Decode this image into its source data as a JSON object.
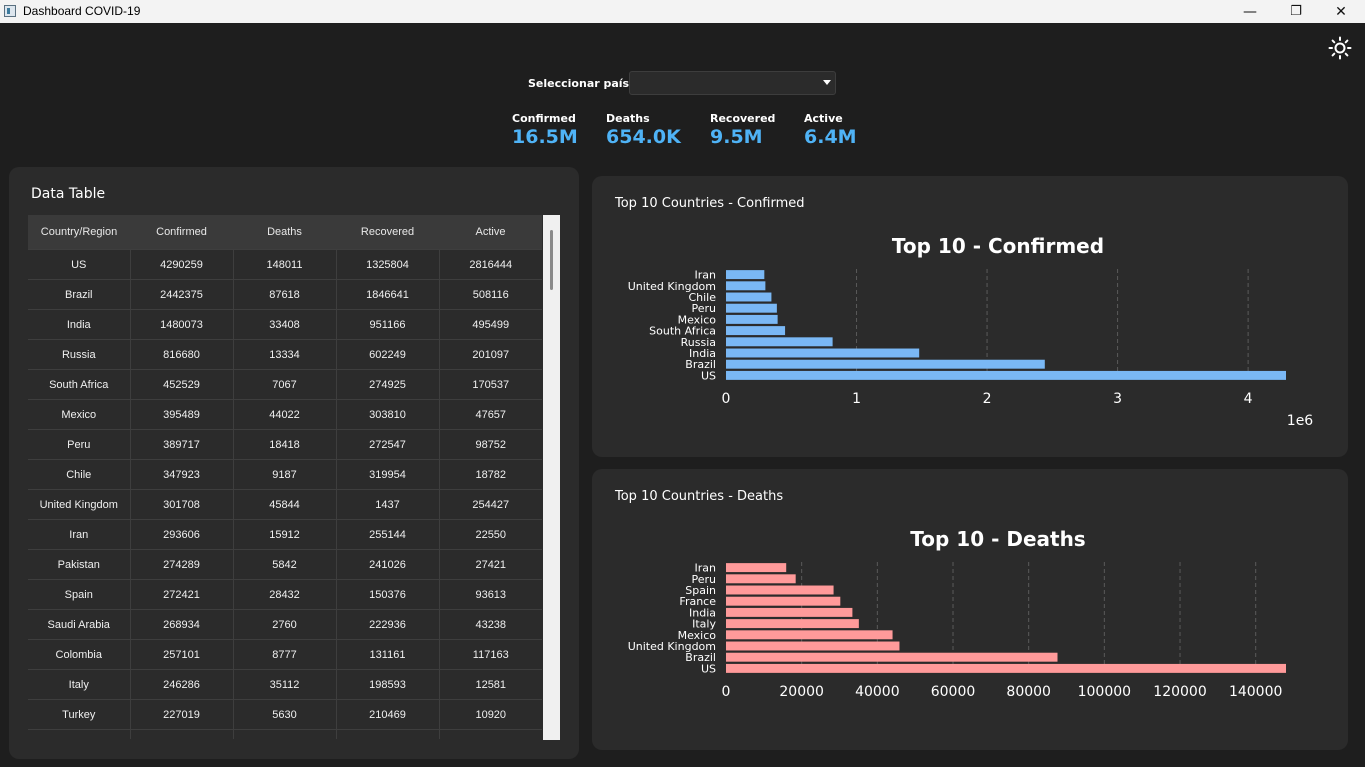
{
  "window": {
    "title": "Dashboard COVID-19",
    "minimize": "—",
    "maximize": "❐",
    "close": "✕"
  },
  "theme_toggle": {
    "icon": "sun-icon"
  },
  "country_selector": {
    "label": "Seleccionar país:",
    "value": ""
  },
  "kpis": [
    {
      "label": "Confirmed",
      "value": "16.5M"
    },
    {
      "label": "Deaths",
      "value": "654.0K"
    },
    {
      "label": "Recovered",
      "value": "9.5M"
    },
    {
      "label": "Active",
      "value": "6.4M"
    }
  ],
  "colors": {
    "accent": "#4fb3f6",
    "confirmed_bar": "#7ab8f5",
    "deaths_bar": "#ff9a9a",
    "panel": "#2b2b2b",
    "background": "#1e1e1e"
  },
  "data_table": {
    "title": "Data Table",
    "columns": [
      "Country/Region",
      "Confirmed",
      "Deaths",
      "Recovered",
      "Active"
    ],
    "rows": [
      [
        "US",
        "4290259",
        "148011",
        "1325804",
        "2816444"
      ],
      [
        "Brazil",
        "2442375",
        "87618",
        "1846641",
        "508116"
      ],
      [
        "India",
        "1480073",
        "33408",
        "951166",
        "495499"
      ],
      [
        "Russia",
        "816680",
        "13334",
        "602249",
        "201097"
      ],
      [
        "South Africa",
        "452529",
        "7067",
        "274925",
        "170537"
      ],
      [
        "Mexico",
        "395489",
        "44022",
        "303810",
        "47657"
      ],
      [
        "Peru",
        "389717",
        "18418",
        "272547",
        "98752"
      ],
      [
        "Chile",
        "347923",
        "9187",
        "319954",
        "18782"
      ],
      [
        "United Kingdom",
        "301708",
        "45844",
        "1437",
        "254427"
      ],
      [
        "Iran",
        "293606",
        "15912",
        "255144",
        "22550"
      ],
      [
        "Pakistan",
        "274289",
        "5842",
        "241026",
        "27421"
      ],
      [
        "Spain",
        "272421",
        "28432",
        "150376",
        "93613"
      ],
      [
        "Saudi Arabia",
        "268934",
        "2760",
        "222936",
        "43238"
      ],
      [
        "Colombia",
        "257101",
        "8777",
        "131161",
        "117163"
      ],
      [
        "Italy",
        "246286",
        "35112",
        "198593",
        "12581"
      ],
      [
        "Turkey",
        "227019",
        "5630",
        "210469",
        "10920"
      ],
      [
        "",
        "",
        "",
        "",
        ""
      ]
    ]
  },
  "panels": {
    "confirmed_title": "Top 10 Countries - Confirmed",
    "deaths_title": "Top 10 Countries - Deaths"
  },
  "chart_data": [
    {
      "type": "bar",
      "orientation": "horizontal",
      "title": "Top 10 - Confirmed",
      "categories": [
        "US",
        "Brazil",
        "India",
        "Russia",
        "South Africa",
        "Mexico",
        "Peru",
        "Chile",
        "United Kingdom",
        "Iran"
      ],
      "values": [
        4290259,
        2442375,
        1480073,
        816680,
        452529,
        395489,
        389717,
        347923,
        301708,
        293606
      ],
      "xlim": [
        0,
        4290259
      ],
      "xticks": [
        0,
        1,
        2,
        3,
        4
      ],
      "tick_scale": 1000000,
      "offset_label": "1e6",
      "color": "#7ab8f5",
      "grid": "vertical dashed"
    },
    {
      "type": "bar",
      "orientation": "horizontal",
      "title": "Top 10 - Deaths",
      "categories": [
        "US",
        "Brazil",
        "United Kingdom",
        "Mexico",
        "Italy",
        "India",
        "France",
        "Spain",
        "Peru",
        "Iran"
      ],
      "values": [
        148011,
        87618,
        45844,
        44022,
        35112,
        33408,
        30212,
        28432,
        18418,
        15912
      ],
      "xlim": [
        0,
        148011
      ],
      "xticks": [
        0,
        20000,
        40000,
        60000,
        80000,
        100000,
        120000,
        140000
      ],
      "tick_scale": 1,
      "offset_label": "",
      "color": "#ff9a9a",
      "grid": "vertical dashed"
    }
  ]
}
